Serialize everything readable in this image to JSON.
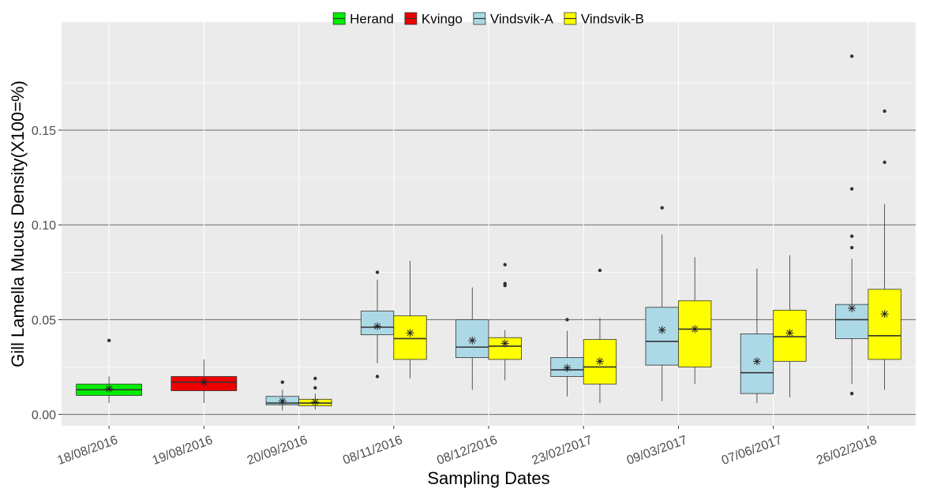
{
  "chart_data": {
    "type": "boxplot",
    "x_label": "Sampling Dates",
    "y_label": "Gill Lamella Mucus Density(X100=%)",
    "categories": [
      "18/08/2016",
      "19/08/2016",
      "20/09/2016",
      "08/11/2016",
      "08/12/2016",
      "23/02/2017",
      "09/03/2017",
      "07/06/2017",
      "26/02/2018"
    ],
    "ylim": [
      -0.006,
      0.207
    ],
    "yticks": [
      {
        "value": 0,
        "label": "0.00"
      },
      0.05,
      {
        "value": 0.1,
        "label": "0.10"
      },
      0.15
    ],
    "grid": true,
    "legend": "top",
    "series": [
      {
        "name": "Herand",
        "color": "#00ee00",
        "boxes": [
          {
            "min": 0.006,
            "q1": 0.01,
            "median": 0.013,
            "q3": 0.016,
            "max": 0.02,
            "mean": 0.0135,
            "outliers": [
              0.039
            ]
          },
          null,
          null,
          null,
          null,
          null,
          null,
          null,
          null
        ]
      },
      {
        "name": "Kvingo",
        "color": "#ee0000",
        "boxes": [
          null,
          {
            "min": 0.006,
            "q1": 0.0125,
            "median": 0.017,
            "q3": 0.02,
            "max": 0.029,
            "mean": 0.017,
            "outliers": []
          },
          null,
          null,
          null,
          null,
          null,
          null,
          null
        ]
      },
      {
        "name": "Vindsvik-A",
        "color": "#add8e6",
        "boxes": [
          null,
          null,
          {
            "min": 0.002,
            "q1": 0.005,
            "median": 0.006,
            "q3": 0.0095,
            "max": 0.013,
            "mean": 0.007,
            "outliers": [
              0.017
            ]
          },
          {
            "min": 0.027,
            "q1": 0.042,
            "median": 0.046,
            "q3": 0.0545,
            "max": 0.071,
            "mean": 0.0465,
            "outliers": [
              0.075,
              0.02
            ]
          },
          {
            "min": 0.013,
            "q1": 0.03,
            "median": 0.0355,
            "q3": 0.05,
            "max": 0.067,
            "mean": 0.039,
            "outliers": []
          },
          {
            "min": 0.0095,
            "q1": 0.02,
            "median": 0.0235,
            "q3": 0.03,
            "max": 0.044,
            "mean": 0.0245,
            "outliers": [
              0.05
            ]
          },
          {
            "min": 0.007,
            "q1": 0.026,
            "median": 0.0385,
            "q3": 0.0565,
            "max": 0.095,
            "mean": 0.0445,
            "outliers": [
              0.109
            ]
          },
          {
            "min": 0.006,
            "q1": 0.011,
            "median": 0.022,
            "q3": 0.0425,
            "max": 0.077,
            "mean": 0.028,
            "outliers": []
          },
          {
            "min": 0.016,
            "q1": 0.04,
            "median": 0.05,
            "q3": 0.058,
            "max": 0.082,
            "mean": 0.056,
            "outliers": [
              0.011,
              0.088,
              0.094,
              0.119,
              0.189
            ]
          }
        ]
      },
      {
        "name": "Vindsvik-B",
        "color": "#ffff00",
        "boxes": [
          null,
          null,
          {
            "min": 0.0025,
            "q1": 0.0045,
            "median": 0.006,
            "q3": 0.008,
            "max": 0.011,
            "mean": 0.0065,
            "outliers": [
              0.014,
              0.019
            ]
          },
          {
            "min": 0.019,
            "q1": 0.029,
            "median": 0.04,
            "q3": 0.052,
            "max": 0.081,
            "mean": 0.043,
            "outliers": []
          },
          {
            "min": 0.018,
            "q1": 0.029,
            "median": 0.036,
            "q3": 0.0405,
            "max": 0.0445,
            "mean": 0.0375,
            "outliers": [
              0.068,
              0.069,
              0.079
            ]
          },
          {
            "min": 0.006,
            "q1": 0.016,
            "median": 0.025,
            "q3": 0.0395,
            "max": 0.051,
            "mean": 0.028,
            "outliers": [
              0.076
            ]
          },
          {
            "min": 0.016,
            "q1": 0.025,
            "median": 0.045,
            "q3": 0.06,
            "max": 0.083,
            "mean": 0.045,
            "outliers": []
          },
          {
            "min": 0.009,
            "q1": 0.028,
            "median": 0.041,
            "q3": 0.055,
            "max": 0.084,
            "mean": 0.043,
            "outliers": []
          },
          {
            "min": 0.013,
            "q1": 0.029,
            "median": 0.0415,
            "q3": 0.066,
            "max": 0.111,
            "mean": 0.053,
            "outliers": [
              0.133,
              0.16
            ]
          }
        ]
      }
    ]
  }
}
